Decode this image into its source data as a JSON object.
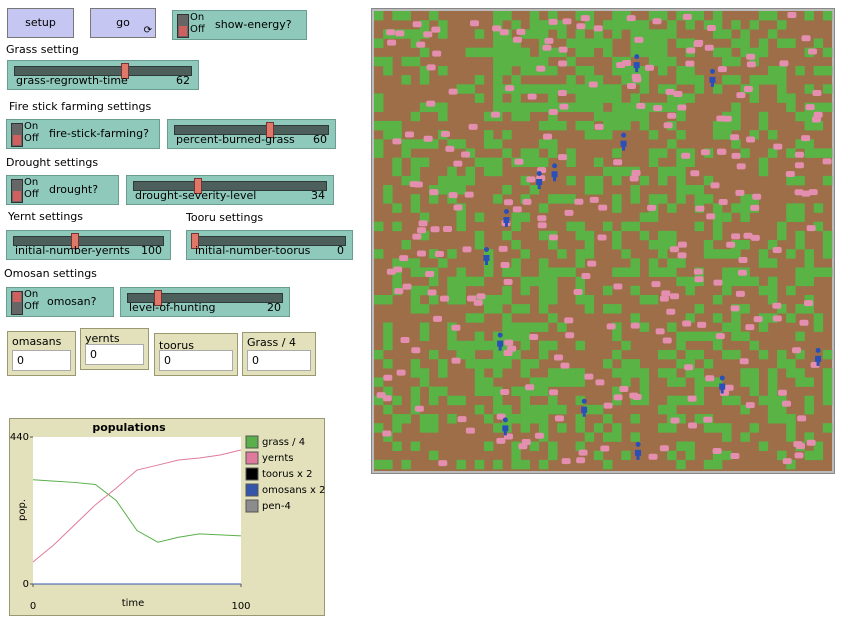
{
  "buttons": [
    {
      "label": "setup"
    },
    {
      "label": "go"
    }
  ],
  "section_labels": [
    "Grass setting",
    "Fire stick farming settings",
    "Drought settings",
    "Yernt settings",
    "Tooru settings",
    "Omosan settings"
  ],
  "switches": [
    {
      "on": "On",
      "off": "Off",
      "label": "show-energy?"
    },
    {
      "on": "On",
      "off": "Off",
      "label": "fire-stick-farming?"
    },
    {
      "on": "On",
      "off": "Off",
      "label": "drought?"
    },
    {
      "on": "On",
      "off": "Off",
      "label": "omosan?"
    }
  ],
  "sliders": [
    {
      "label": "grass-regrowth-time",
      "value": 62
    },
    {
      "label": "percent-burned-grass",
      "value": 60
    },
    {
      "label": "drought-severity-level",
      "value": 34
    },
    {
      "label": "initial-number-yernts",
      "value": 100
    },
    {
      "label": "initial-number-toorus",
      "value": 0
    },
    {
      "label": "level-of-hunting",
      "value": 20
    }
  ],
  "monitors": [
    {
      "label": "omasans",
      "value": 0
    },
    {
      "label": "yernts",
      "value": 0
    },
    {
      "label": "toorus",
      "value": 0
    },
    {
      "label": "Grass / 4",
      "value": 0
    }
  ],
  "chart_data": {
    "type": "line",
    "title": "populations",
    "x_label": "time",
    "y_label": "pop.",
    "x": [
      0,
      10,
      20,
      30,
      40,
      50,
      60,
      70,
      80,
      90,
      100
    ],
    "xlim": [
      0,
      100
    ],
    "xticks": [
      0,
      100
    ],
    "ylim": [
      0,
      440
    ],
    "yticks": [
      0,
      440
    ],
    "series": [
      {
        "name": "grass / 4",
        "color": "#59b04a",
        "values": [
          312,
          308,
          304,
          298,
          250,
          160,
          125,
          140,
          150,
          147,
          144
        ]
      },
      {
        "name": "yernts",
        "color": "#e07a9c",
        "values": [
          66,
          117,
          177,
          237,
          287,
          341,
          356,
          371,
          377,
          386,
          401
        ]
      },
      {
        "name": "toorus x 2",
        "color": "#000000",
        "values": [
          0,
          0,
          0,
          0,
          0,
          0,
          0,
          0,
          0,
          0,
          0
        ]
      },
      {
        "name": "omosans x 2",
        "color": "#3355aa",
        "values": [
          0,
          0,
          0,
          0,
          0,
          0,
          0,
          0,
          0,
          0,
          0
        ]
      },
      {
        "name": "pen-4",
        "color": "#8c8c8c",
        "values": [
          null,
          null,
          null,
          null,
          null,
          null,
          null,
          null,
          null,
          null,
          null
        ]
      }
    ]
  }
}
